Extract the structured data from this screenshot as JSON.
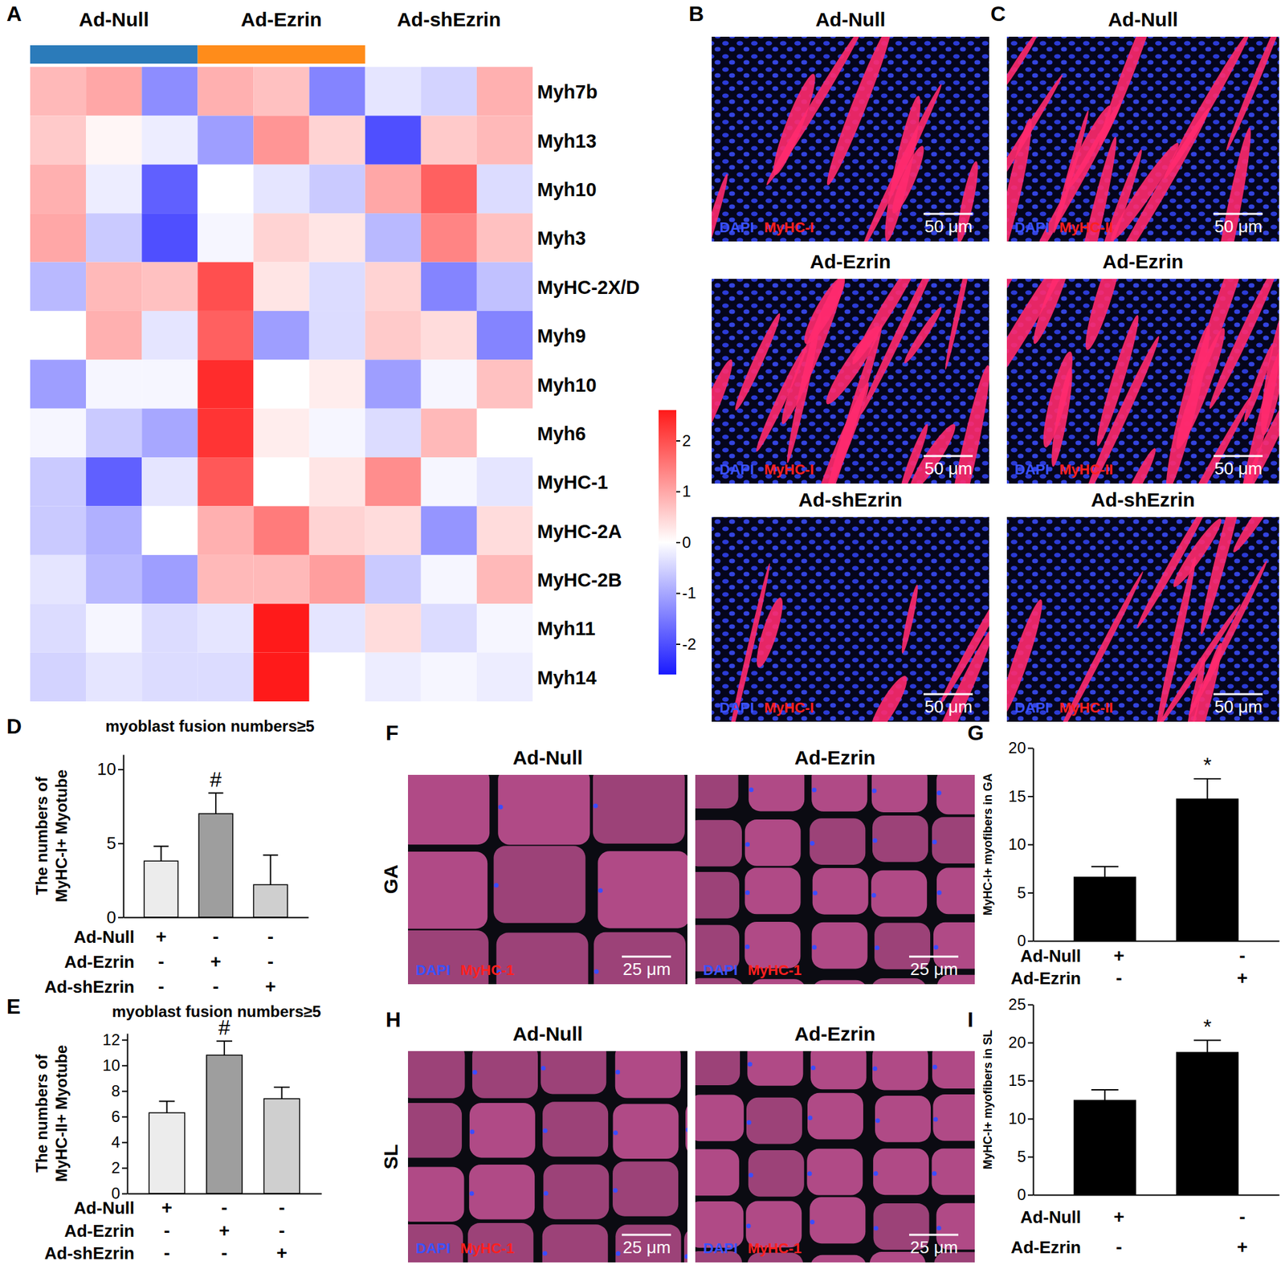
{
  "chart_data": [
    {
      "panel": "A",
      "type": "heatmap",
      "groups": [
        {
          "name": "Ad-Null",
          "color": "#2b7bba",
          "columns": 3
        },
        {
          "name": "Ad-Ezrin",
          "color": "#ff8c1a",
          "columns": 3
        },
        {
          "name": "Ad-shEzrin",
          "columns": 3
        }
      ],
      "rows": [
        "Myh7b",
        "Myh13",
        "Myh10",
        "Myh3",
        "MyHC-2X/D",
        "Myh9",
        "Myh10",
        "Myh6",
        "MyHC-1",
        "MyHC-2A",
        "MyHC-2B",
        "Myh11",
        "Myh14"
      ],
      "cells": [
        [
          0.8,
          1.0,
          -1.3,
          0.9,
          0.7,
          -1.4,
          -0.3,
          -0.5,
          0.9
        ],
        [
          0.6,
          0.1,
          -0.2,
          -1.1,
          1.2,
          0.5,
          -2.0,
          0.6,
          0.8
        ],
        [
          0.9,
          -0.2,
          -1.8,
          0.0,
          -0.3,
          -0.6,
          1.0,
          1.8,
          -0.4
        ],
        [
          1.0,
          -0.6,
          -2.0,
          -0.1,
          0.5,
          0.3,
          -0.8,
          1.4,
          0.7
        ],
        [
          -0.8,
          0.8,
          0.7,
          2.0,
          0.3,
          -0.4,
          0.5,
          -1.4,
          -0.7
        ],
        [
          0.0,
          0.9,
          -0.3,
          1.8,
          -1.1,
          -0.4,
          0.6,
          0.4,
          -1.4
        ],
        [
          -1.1,
          -0.1,
          -0.1,
          2.4,
          0.0,
          0.2,
          -1.1,
          -0.1,
          0.7
        ],
        [
          -0.1,
          -0.6,
          -1.0,
          2.3,
          0.2,
          -0.1,
          -0.4,
          0.8,
          0.0
        ],
        [
          -0.6,
          -1.8,
          -0.3,
          1.9,
          0.0,
          0.3,
          1.3,
          -0.1,
          -0.3
        ],
        [
          -0.6,
          -0.9,
          0.0,
          0.9,
          1.5,
          0.5,
          0.4,
          -1.2,
          0.4
        ],
        [
          -0.3,
          -0.8,
          -1.1,
          0.8,
          0.8,
          1.1,
          -0.6,
          -0.1,
          0.8
        ],
        [
          -0.4,
          -0.1,
          -0.4,
          -0.3,
          2.6,
          -0.3,
          0.4,
          -0.4,
          -0.1
        ],
        [
          -0.5,
          -0.3,
          -0.4,
          -0.4,
          2.6,
          0.0,
          -0.2,
          -0.1,
          -0.2
        ]
      ],
      "colorbar": {
        "range": [
          -2.6,
          2.6
        ],
        "ticks": [
          -2,
          -1,
          0,
          1,
          2
        ],
        "colors": [
          "#1a1aff",
          "#ffffff",
          "#ff1a1a"
        ]
      }
    },
    {
      "panel": "D",
      "type": "bar",
      "title": "myoblast fusion numbers≥5",
      "y_label": [
        "The numbers of",
        "MyHC-I+ Myotube"
      ],
      "categories": [
        null,
        null,
        null
      ],
      "values": [
        3.8,
        7,
        2.2
      ],
      "errors": [
        1.0,
        1.4,
        2.0
      ],
      "annotations": [
        {
          "index": 1,
          "text": "#"
        }
      ],
      "conditions": [
        {
          "name": "Ad-Null",
          "signs": [
            "+",
            "-",
            "-"
          ]
        },
        {
          "name": "Ad-Ezrin",
          "signs": [
            "-",
            "+",
            "-"
          ]
        },
        {
          "name": "Ad-shEzrin",
          "signs": [
            "-",
            "-",
            "+"
          ]
        }
      ],
      "colors": [
        "#ececec",
        "#9e9e9e",
        "#cfcfcf"
      ],
      "ylim": [
        0,
        11
      ],
      "yticks": [
        0,
        5,
        10
      ],
      "tick_labels": "y"
    },
    {
      "panel": "E",
      "type": "bar",
      "title": "myoblast fusion numbers≥5",
      "y_label": [
        "The numbers of",
        "MyHC-II+ Myotube"
      ],
      "categories": [
        null,
        null,
        null
      ],
      "values": [
        6.3,
        10.8,
        7.4
      ],
      "errors": [
        0.9,
        1.1,
        0.9
      ],
      "annotations": [
        {
          "index": 1,
          "text": "#"
        }
      ],
      "conditions": [
        {
          "name": "Ad-Null",
          "signs": [
            "+",
            "-",
            "-"
          ]
        },
        {
          "name": "Ad-Ezrin",
          "signs": [
            "-",
            "+",
            "-"
          ]
        },
        {
          "name": "Ad-shEzrin",
          "signs": [
            "-",
            "-",
            "+"
          ]
        }
      ],
      "colors": [
        "#ececec",
        "#9e9e9e",
        "#cfcfcf"
      ],
      "ylim": [
        0,
        12.5
      ],
      "yticks": [
        0,
        2,
        4,
        6,
        8,
        10,
        12
      ],
      "tick_labels": "y"
    },
    {
      "panel": "G",
      "type": "bar",
      "y_label": [
        "MyHC-I+ myofibers in GA"
      ],
      "categories": [
        null,
        null
      ],
      "values": [
        6.6,
        14.7
      ],
      "errors": [
        1.1,
        2.1
      ],
      "annotations": [
        {
          "index": 1,
          "text": "*"
        }
      ],
      "conditions": [
        {
          "name": "Ad-Null",
          "signs": [
            "+",
            "-"
          ]
        },
        {
          "name": "Ad-Ezrin",
          "signs": [
            "-",
            "+"
          ]
        }
      ],
      "color": "#000000",
      "ylim": [
        0,
        20
      ],
      "yticks": [
        0,
        5,
        10,
        15,
        20
      ],
      "tick_labels": "y"
    },
    {
      "panel": "I",
      "type": "bar",
      "y_label": [
        "MyHC-I+ myofibers in SL"
      ],
      "categories": [
        null,
        null
      ],
      "values": [
        12.4,
        18.7
      ],
      "errors": [
        1.4,
        1.6
      ],
      "annotations": [
        {
          "index": 1,
          "text": "*"
        }
      ],
      "conditions": [
        {
          "name": "Ad-Null",
          "signs": [
            "+",
            "-"
          ]
        },
        {
          "name": "Ad-Ezrin",
          "signs": [
            "-",
            "+"
          ]
        }
      ],
      "color": "#000000",
      "ylim": [
        0,
        25
      ],
      "yticks": [
        0,
        5,
        10,
        15,
        20,
        25
      ],
      "tick_labels": "y"
    }
  ],
  "image_panels": [
    {
      "panel": "B",
      "images": [
        {
          "title": "Ad-Null",
          "stains": [
            "DAPI",
            "MyHC-I"
          ],
          "scale_bar": "50 μm"
        },
        {
          "title": "Ad-Ezrin",
          "stains": [
            "DAPI",
            "MyHC-I"
          ],
          "scale_bar": "50 μm"
        },
        {
          "title": "Ad-shEzrin",
          "stains": [
            "DAPI",
            "MyHC-I"
          ],
          "scale_bar": "50 μm"
        }
      ]
    },
    {
      "panel": "C",
      "images": [
        {
          "title": "Ad-Null",
          "stains": [
            "DAPI",
            "MyHC-II"
          ],
          "scale_bar": "50 μm"
        },
        {
          "title": "Ad-Ezrin",
          "stains": [
            "DAPI",
            "MyHC-II"
          ],
          "scale_bar": "50 μm"
        },
        {
          "title": "Ad-shEzrin",
          "stains": [
            "DAPI",
            "MyHC-II"
          ],
          "scale_bar": "50 μm"
        }
      ]
    },
    {
      "panel": "F",
      "row_label": "GA",
      "images": [
        {
          "title": "Ad-Null",
          "stains": [
            "DAPI",
            "MyHC-1"
          ],
          "scale_bar": "25 μm"
        },
        {
          "title": "Ad-Ezrin",
          "stains": [
            "DAPI",
            "MyHC-1"
          ],
          "scale_bar": "25 μm"
        }
      ]
    },
    {
      "panel": "H",
      "row_label": "SL",
      "images": [
        {
          "title": "Ad-Null",
          "stains": [
            "DAPI",
            "MyHC-1"
          ],
          "scale_bar": "25 μm"
        },
        {
          "title": "Ad-Ezrin",
          "stains": [
            "DAPI",
            "MyHC-1"
          ],
          "scale_bar": "25 μm"
        }
      ]
    }
  ]
}
